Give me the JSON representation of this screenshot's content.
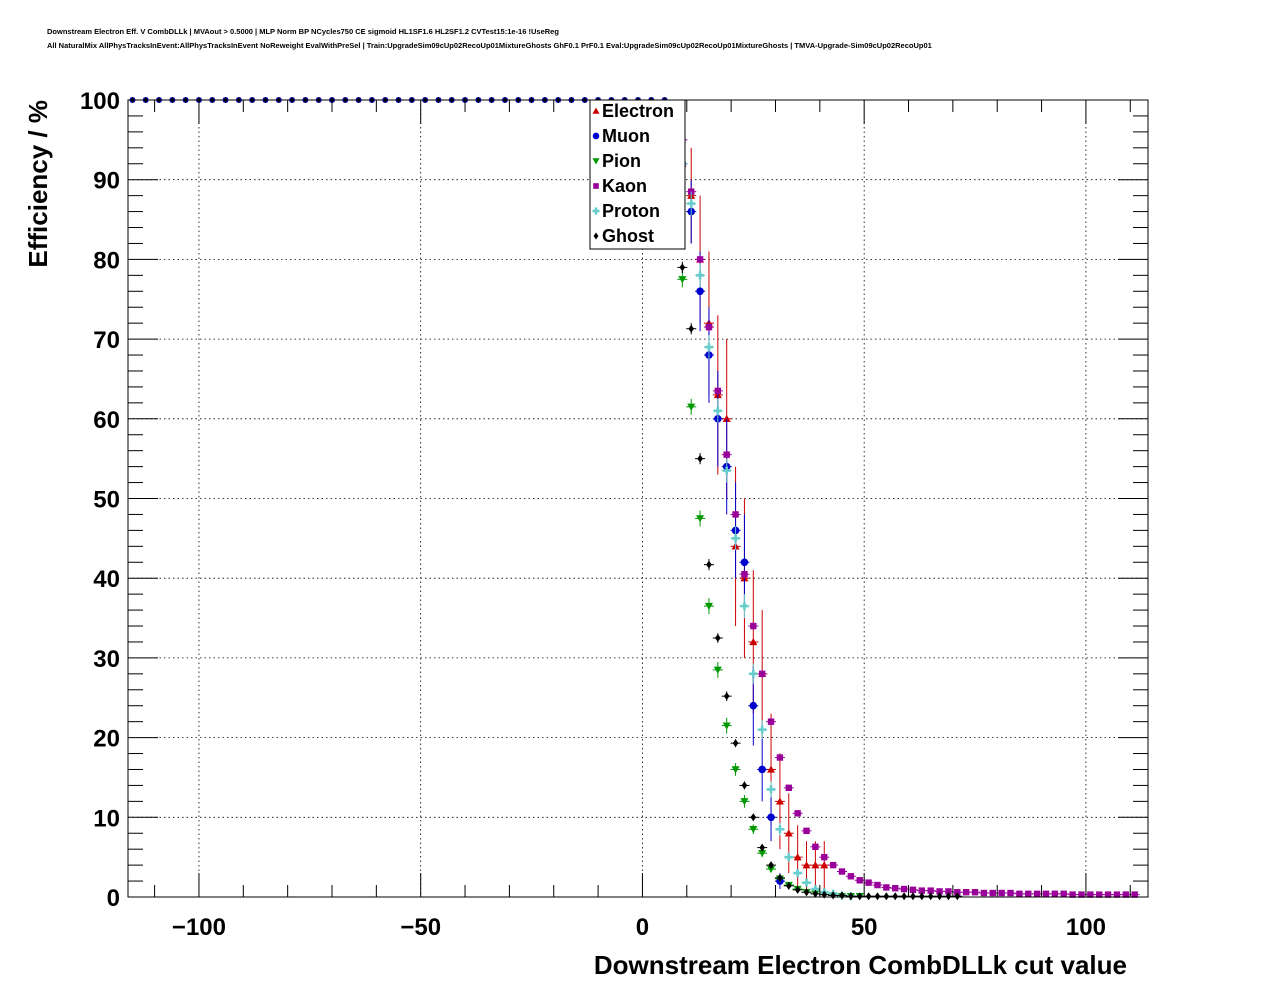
{
  "header": {
    "title_line1": "Downstream Electron Eff. V CombDLLk | MVAout > 0.5000 | MLP Norm BP NCycles750 CE sigmoid HL1SF1.6 HL2SF1.2 CVTest15:1e-16 !UseReg",
    "title_line2": "All NaturalMix AllPhysTracksInEvent:AllPhysTracksInEvent NoReweight EvalWithPreSel | Train:UpgradeSim09cUp02RecoUp01MixtureGhosts GhF0.1 PrF0.1 Eval:UpgradeSim09cUp02RecoUp01MixtureGhosts | TMVA-Upgrade-Sim09cUp02RecoUp01"
  },
  "chart_data": {
    "type": "scatter",
    "xlabel": "Downstream Electron CombDLLk cut value",
    "ylabel": "Efficiency / %",
    "xlim": [
      -116,
      114
    ],
    "ylim": [
      0,
      100
    ],
    "x_ticks": [
      -100,
      -50,
      0,
      50,
      100
    ],
    "x_tick_labels": [
      "−100",
      "−50",
      "0",
      "50",
      "100"
    ],
    "y_ticks": [
      0,
      10,
      20,
      30,
      40,
      50,
      60,
      70,
      80,
      90,
      100
    ],
    "y_tick_labels": [
      "0",
      "10",
      "20",
      "30",
      "40",
      "50",
      "60",
      "70",
      "80",
      "90",
      "100"
    ],
    "grid": true,
    "legend_position": "top-center",
    "series": [
      {
        "name": "Electron",
        "color": "#cc0000",
        "marker": "triangle-up",
        "x": [
          9,
          11,
          13,
          15,
          17,
          19,
          21,
          23,
          25,
          27,
          29,
          31,
          33,
          35,
          37,
          39,
          41
        ],
        "y": [
          92,
          88,
          80,
          72,
          63,
          60,
          44,
          40,
          32,
          28,
          16,
          12,
          8,
          5,
          4,
          4,
          4
        ],
        "err": [
          3,
          6,
          8,
          9,
          10,
          10,
          10,
          10,
          9,
          8,
          7,
          6,
          5,
          4,
          3,
          3,
          3
        ]
      },
      {
        "name": "Muon",
        "color": "#0000cc",
        "marker": "circle",
        "x": [
          9,
          11,
          13,
          15,
          17,
          19,
          21,
          23,
          25,
          27,
          29,
          31
        ],
        "y": [
          92,
          86,
          76,
          68,
          60,
          54,
          46,
          42,
          24,
          16,
          10,
          2
        ],
        "err": [
          3,
          4,
          5,
          6,
          6,
          6,
          6,
          6,
          5,
          4,
          3,
          1
        ]
      },
      {
        "name": "Pion",
        "color": "#009900",
        "marker": "triangle-down",
        "x": [
          7,
          9,
          11,
          13,
          15,
          17,
          19,
          21,
          23,
          25,
          27,
          29,
          31,
          33,
          35,
          37,
          39,
          41,
          43,
          45,
          47,
          49
        ],
        "y": [
          88,
          77.5,
          61.5,
          47.5,
          36.5,
          28.5,
          21.5,
          16,
          12,
          8.5,
          5.5,
          3.5,
          2.3,
          1.5,
          1,
          0.6,
          0.4,
          0.3,
          0.2,
          0.1,
          0.1,
          0.1
        ],
        "err": [
          1,
          1,
          1,
          1,
          1,
          1,
          1,
          0.8,
          0.8,
          0.6,
          0.5,
          0.4,
          0.3,
          0.2,
          0.2,
          0.1,
          0.1,
          0.1,
          0.1,
          0.1,
          0.1,
          0.1
        ]
      },
      {
        "name": "Kaon",
        "color": "#990099",
        "marker": "square",
        "x": [
          9,
          11,
          13,
          15,
          17,
          19,
          21,
          23,
          25,
          27,
          29,
          31,
          33,
          35,
          37,
          39,
          41,
          43,
          45,
          47,
          49,
          51,
          53,
          55,
          57,
          59,
          61,
          63,
          65,
          67,
          69,
          71,
          73,
          75,
          77,
          79,
          81,
          83,
          85,
          87,
          89,
          91,
          93,
          95,
          97,
          99,
          101,
          103,
          105,
          107,
          109,
          111
        ],
        "y": [
          95,
          88.5,
          80,
          71.5,
          63.5,
          55.5,
          48,
          40.5,
          34,
          28,
          22,
          17.5,
          13.7,
          10.5,
          8.3,
          6.3,
          5,
          4,
          3.2,
          2.6,
          2.1,
          1.8,
          1.5,
          1.2,
          1.1,
          1,
          0.9,
          0.8,
          0.8,
          0.7,
          0.7,
          0.6,
          0.6,
          0.6,
          0.5,
          0.5,
          0.5,
          0.5,
          0.4,
          0.4,
          0.4,
          0.4,
          0.4,
          0.4,
          0.3,
          0.3,
          0.3,
          0.3,
          0.3,
          0.3,
          0.3,
          0.3
        ],
        "err": [
          0.5,
          0.5,
          0.5,
          0.5,
          0.5,
          0.5,
          0.5,
          0.5,
          0.5,
          0.5,
          0.5,
          0.4,
          0.4,
          0.4,
          0.3,
          0.3,
          0.3,
          0.2,
          0.2,
          0.2,
          0.2,
          0.2,
          0.1,
          0.1,
          0.1,
          0.1,
          0.1,
          0.1,
          0.1,
          0.1,
          0.1,
          0.1,
          0.1,
          0.1,
          0.1,
          0.1,
          0.1,
          0.1,
          0.1,
          0.1,
          0.1,
          0.1,
          0.1,
          0.1,
          0.1,
          0.1,
          0.1,
          0.1,
          0.1,
          0.1,
          0.1,
          0.1
        ]
      },
      {
        "name": "Proton",
        "color": "#66cccc",
        "marker": "cross",
        "x": [
          9,
          11,
          13,
          15,
          17,
          19,
          21,
          23,
          25,
          27,
          29,
          31,
          33,
          35,
          37,
          39,
          41,
          43,
          45,
          47
        ],
        "y": [
          92,
          87,
          78,
          69,
          61,
          53.5,
          45,
          36.5,
          28,
          21,
          13.5,
          8.5,
          5,
          3,
          1.8,
          1,
          0.6,
          0.4,
          0.2,
          0.1
        ],
        "err": [
          1.5,
          1.5,
          1.5,
          1.5,
          1.5,
          1.5,
          1.5,
          1.5,
          1.3,
          1.2,
          1,
          0.8,
          0.6,
          0.5,
          0.4,
          0.3,
          0.2,
          0.1,
          0.1,
          0.1
        ]
      },
      {
        "name": "Ghost",
        "color": "#000000",
        "marker": "diamond",
        "x": [
          9,
          11,
          13,
          15,
          17,
          19,
          21,
          23,
          25,
          27,
          29,
          31,
          33,
          35,
          37,
          39,
          41,
          43,
          45,
          47,
          49,
          51,
          53,
          55,
          57,
          59,
          61,
          63,
          65,
          67,
          69,
          71
        ],
        "y": [
          79,
          71.3,
          55,
          41.7,
          32.5,
          25.2,
          19.3,
          14,
          10,
          6.2,
          4,
          2.4,
          1.4,
          0.9,
          0.6,
          0.4,
          0.3,
          0.2,
          0.2,
          0.1,
          0.1,
          0.1,
          0.1,
          0.1,
          0.1,
          0.1,
          0.1,
          0.1,
          0.1,
          0.1,
          0.1,
          0.1
        ],
        "err": [
          0.7,
          0.7,
          0.7,
          0.7,
          0.6,
          0.6,
          0.5,
          0.5,
          0.4,
          0.4,
          0.3,
          0.2,
          0.2,
          0.1,
          0.1,
          0.1,
          0.1,
          0.1,
          0.1,
          0.1,
          0.1,
          0.1,
          0.1,
          0.1,
          0.1,
          0.1,
          0.1,
          0.1,
          0.1,
          0.1,
          0.1,
          0.1
        ]
      }
    ],
    "plateau": {
      "x_start": -115,
      "x_end": 5,
      "x_step": 3,
      "y": 100,
      "series_colors": [
        "#990099",
        "#66cccc",
        "#0000cc",
        "#000000"
      ]
    }
  }
}
